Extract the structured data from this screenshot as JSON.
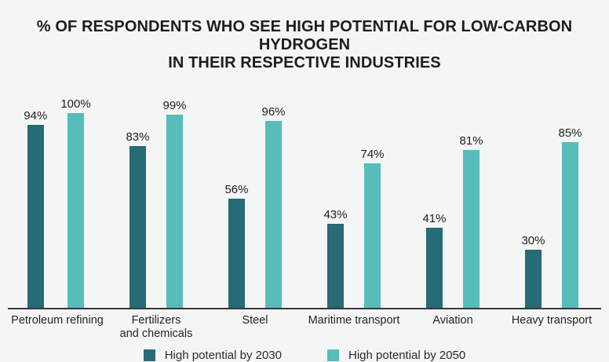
{
  "page": {
    "background": "#f4f5f5"
  },
  "title": {
    "line1": "% OF RESPONDENTS WHO SEE HIGH POTENTIAL FOR LOW-CARBON HYDROGEN",
    "line2": "IN THEIR RESPECTIVE INDUSTRIES"
  },
  "legend": {
    "items": [
      {
        "label": "High potential by 2030",
        "color": "#266b75"
      },
      {
        "label": "High potential by 2050",
        "color": "#57bdba"
      }
    ]
  },
  "chart_data": {
    "type": "bar",
    "title": "% OF RESPONDENTS WHO SEE HIGH POTENTIAL FOR LOW-CARBON HYDROGEN IN THEIR RESPECTIVE INDUSTRIES",
    "categories": [
      "Petroleum refining",
      "Fertilizers\nand chemicals",
      "Steel",
      "Maritime transport",
      "Aviation",
      "Heavy transport"
    ],
    "series": [
      {
        "name": "High potential by 2030",
        "color": "#266b75",
        "values": [
          94,
          83,
          56,
          43,
          41,
          30
        ]
      },
      {
        "name": "High potential by 2050",
        "color": "#57bdba",
        "values": [
          100,
          99,
          96,
          74,
          81,
          85
        ]
      }
    ],
    "data_labels": true,
    "data_label_suffix": "%",
    "ylim": [
      0,
      100
    ],
    "grid": false,
    "legend_position": "bottom",
    "axis_color": "#39383d"
  }
}
